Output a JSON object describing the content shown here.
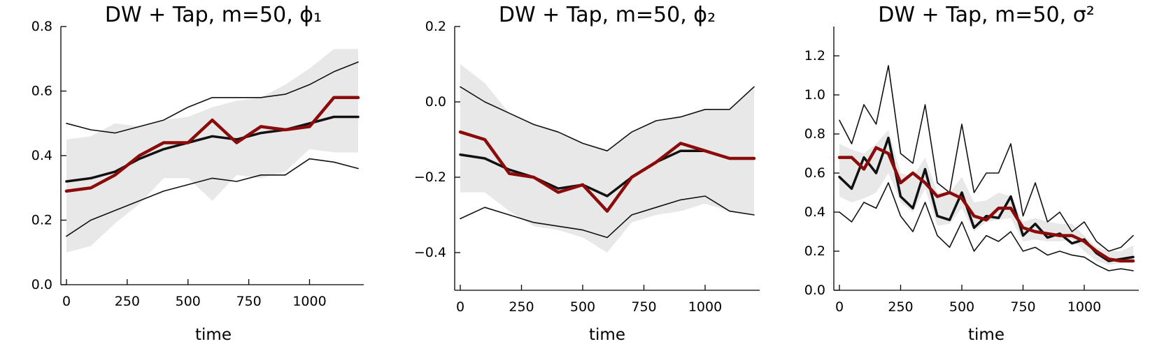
{
  "chart_data": [
    {
      "type": "line",
      "title": "DW + Tap, m=50, ϕ₁",
      "xlabel": "time",
      "ylabel": "",
      "xlim": [
        0,
        1200
      ],
      "ylim": [
        0.0,
        0.8
      ],
      "xticks": [
        0,
        250,
        500,
        750,
        1000
      ],
      "xtick_labels": [
        "0",
        "250",
        "500",
        "750",
        "1000"
      ],
      "yticks": [
        0.0,
        0.2,
        0.4,
        0.6,
        0.8
      ],
      "ytick_labels": [
        "0.0",
        "0.2",
        "0.4",
        "0.6",
        "0.8"
      ],
      "x": [
        0,
        100,
        200,
        300,
        400,
        500,
        600,
        700,
        800,
        900,
        1000,
        1100,
        1200
      ],
      "band": {
        "name": "band",
        "color": "#e8e8e8",
        "lower": [
          0.1,
          0.12,
          0.19,
          0.25,
          0.33,
          0.33,
          0.26,
          0.34,
          0.33,
          0.35,
          0.42,
          0.41,
          0.41
        ],
        "upper": [
          0.45,
          0.46,
          0.5,
          0.49,
          0.51,
          0.52,
          0.55,
          0.57,
          0.58,
          0.62,
          0.67,
          0.73,
          0.73
        ]
      },
      "series": [
        {
          "name": "upper",
          "color": "#111111",
          "width": 1.6,
          "values": [
            0.5,
            0.48,
            0.47,
            0.49,
            0.51,
            0.55,
            0.58,
            0.58,
            0.58,
            0.59,
            0.62,
            0.66,
            0.69
          ]
        },
        {
          "name": "lower",
          "color": "#111111",
          "width": 1.6,
          "values": [
            0.15,
            0.2,
            0.23,
            0.26,
            0.29,
            0.31,
            0.33,
            0.32,
            0.34,
            0.34,
            0.39,
            0.38,
            0.36
          ]
        },
        {
          "name": "mean",
          "color": "#111111",
          "width": 3.5,
          "values": [
            0.32,
            0.33,
            0.35,
            0.39,
            0.42,
            0.44,
            0.46,
            0.45,
            0.47,
            0.48,
            0.5,
            0.52,
            0.52
          ]
        },
        {
          "name": "estimate",
          "color": "#8b0a0a",
          "width": 4.5,
          "values": [
            0.29,
            0.3,
            0.34,
            0.4,
            0.44,
            0.44,
            0.51,
            0.44,
            0.49,
            0.48,
            0.49,
            0.58,
            0.58
          ]
        }
      ]
    },
    {
      "type": "line",
      "title": "DW + Tap, m=50, ϕ₂",
      "xlabel": "time",
      "ylabel": "",
      "xlim": [
        0,
        1200
      ],
      "ylim": [
        -0.5,
        0.2
      ],
      "xticks": [
        0,
        250,
        500,
        750,
        1000
      ],
      "xtick_labels": [
        "0",
        "250",
        "500",
        "750",
        "1000"
      ],
      "yticks": [
        -0.4,
        -0.2,
        0.0,
        0.2
      ],
      "ytick_labels": [
        "−0.4",
        "−0.2",
        "0.0",
        "0.2"
      ],
      "x": [
        0,
        100,
        200,
        300,
        400,
        500,
        600,
        700,
        800,
        900,
        1000,
        1100,
        1200
      ],
      "band": {
        "name": "band",
        "color": "#e8e8e8",
        "lower": [
          -0.24,
          -0.24,
          -0.29,
          -0.33,
          -0.34,
          -0.36,
          -0.4,
          -0.32,
          -0.3,
          -0.29,
          -0.27,
          -0.29,
          -0.3
        ],
        "upper": [
          0.1,
          0.05,
          -0.03,
          -0.06,
          -0.08,
          -0.11,
          -0.13,
          -0.08,
          -0.05,
          -0.04,
          -0.02,
          -0.02,
          0.04
        ]
      },
      "series": [
        {
          "name": "upper",
          "color": "#111111",
          "width": 1.6,
          "values": [
            0.04,
            0.0,
            -0.03,
            -0.06,
            -0.08,
            -0.11,
            -0.13,
            -0.08,
            -0.05,
            -0.04,
            -0.02,
            -0.02,
            0.04
          ]
        },
        {
          "name": "lower",
          "color": "#111111",
          "width": 1.6,
          "values": [
            -0.31,
            -0.28,
            -0.3,
            -0.32,
            -0.33,
            -0.34,
            -0.36,
            -0.3,
            -0.28,
            -0.26,
            -0.25,
            -0.29,
            -0.3
          ]
        },
        {
          "name": "mean",
          "color": "#111111",
          "width": 3.5,
          "values": [
            -0.14,
            -0.15,
            -0.18,
            -0.2,
            -0.23,
            -0.22,
            -0.25,
            -0.2,
            -0.16,
            -0.13,
            -0.13,
            -0.15,
            -0.15
          ]
        },
        {
          "name": "estimate",
          "color": "#8b0a0a",
          "width": 4.5,
          "values": [
            -0.08,
            -0.1,
            -0.19,
            -0.2,
            -0.24,
            -0.22,
            -0.29,
            -0.2,
            -0.16,
            -0.11,
            -0.13,
            -0.15,
            -0.15
          ]
        }
      ]
    },
    {
      "type": "line",
      "title": "DW + Tap, m=50, σ²",
      "xlabel": "time",
      "ylabel": "",
      "xlim": [
        0,
        1200
      ],
      "ylim": [
        0.0,
        1.35
      ],
      "xticks": [
        0,
        250,
        500,
        750,
        1000
      ],
      "xtick_labels": [
        "0",
        "250",
        "500",
        "750",
        "1000"
      ],
      "yticks": [
        0.0,
        0.2,
        0.4,
        0.6,
        0.8,
        1.0,
        1.2
      ],
      "ytick_labels": [
        "0.0",
        "0.2",
        "0.4",
        "0.6",
        "0.8",
        "1.0",
        "1.2"
      ],
      "x": [
        0,
        50,
        100,
        150,
        200,
        250,
        300,
        350,
        400,
        450,
        500,
        550,
        600,
        650,
        700,
        750,
        800,
        850,
        900,
        950,
        1000,
        1050,
        1100,
        1150,
        1200
      ],
      "band": {
        "name": "band",
        "color": "#e8e8e8",
        "lower": [
          0.48,
          0.45,
          0.47,
          0.5,
          0.6,
          0.45,
          0.4,
          0.52,
          0.33,
          0.34,
          0.42,
          0.3,
          0.35,
          0.36,
          0.37,
          0.25,
          0.26,
          0.25,
          0.25,
          0.26,
          0.2,
          0.15,
          0.13,
          0.14,
          0.15
        ],
        "upper": [
          0.75,
          0.72,
          0.7,
          0.75,
          0.82,
          0.6,
          0.58,
          0.68,
          0.5,
          0.5,
          0.58,
          0.45,
          0.46,
          0.5,
          0.48,
          0.35,
          0.37,
          0.35,
          0.34,
          0.34,
          0.28,
          0.22,
          0.2,
          0.2,
          0.23
        ]
      },
      "series": [
        {
          "name": "upper",
          "color": "#111111",
          "width": 1.6,
          "values": [
            0.87,
            0.75,
            0.95,
            0.85,
            1.15,
            0.7,
            0.65,
            0.95,
            0.55,
            0.5,
            0.85,
            0.5,
            0.6,
            0.6,
            0.75,
            0.38,
            0.55,
            0.35,
            0.4,
            0.3,
            0.35,
            0.25,
            0.2,
            0.22,
            0.28
          ]
        },
        {
          "name": "lower",
          "color": "#111111",
          "width": 1.6,
          "values": [
            0.4,
            0.35,
            0.45,
            0.42,
            0.55,
            0.38,
            0.3,
            0.45,
            0.28,
            0.22,
            0.35,
            0.2,
            0.28,
            0.25,
            0.3,
            0.2,
            0.22,
            0.18,
            0.2,
            0.18,
            0.17,
            0.13,
            0.1,
            0.11,
            0.1
          ]
        },
        {
          "name": "mean",
          "color": "#111111",
          "width": 3.5,
          "values": [
            0.58,
            0.52,
            0.68,
            0.6,
            0.78,
            0.48,
            0.42,
            0.62,
            0.38,
            0.36,
            0.5,
            0.32,
            0.38,
            0.37,
            0.48,
            0.28,
            0.34,
            0.27,
            0.29,
            0.24,
            0.26,
            0.19,
            0.15,
            0.16,
            0.17
          ]
        },
        {
          "name": "estimate",
          "color": "#8b0a0a",
          "width": 4.5,
          "values": [
            0.68,
            0.68,
            0.62,
            0.73,
            0.7,
            0.55,
            0.6,
            0.55,
            0.48,
            0.5,
            0.47,
            0.38,
            0.36,
            0.42,
            0.42,
            0.32,
            0.3,
            0.29,
            0.28,
            0.28,
            0.25,
            0.2,
            0.16,
            0.15,
            0.15
          ]
        }
      ]
    }
  ]
}
